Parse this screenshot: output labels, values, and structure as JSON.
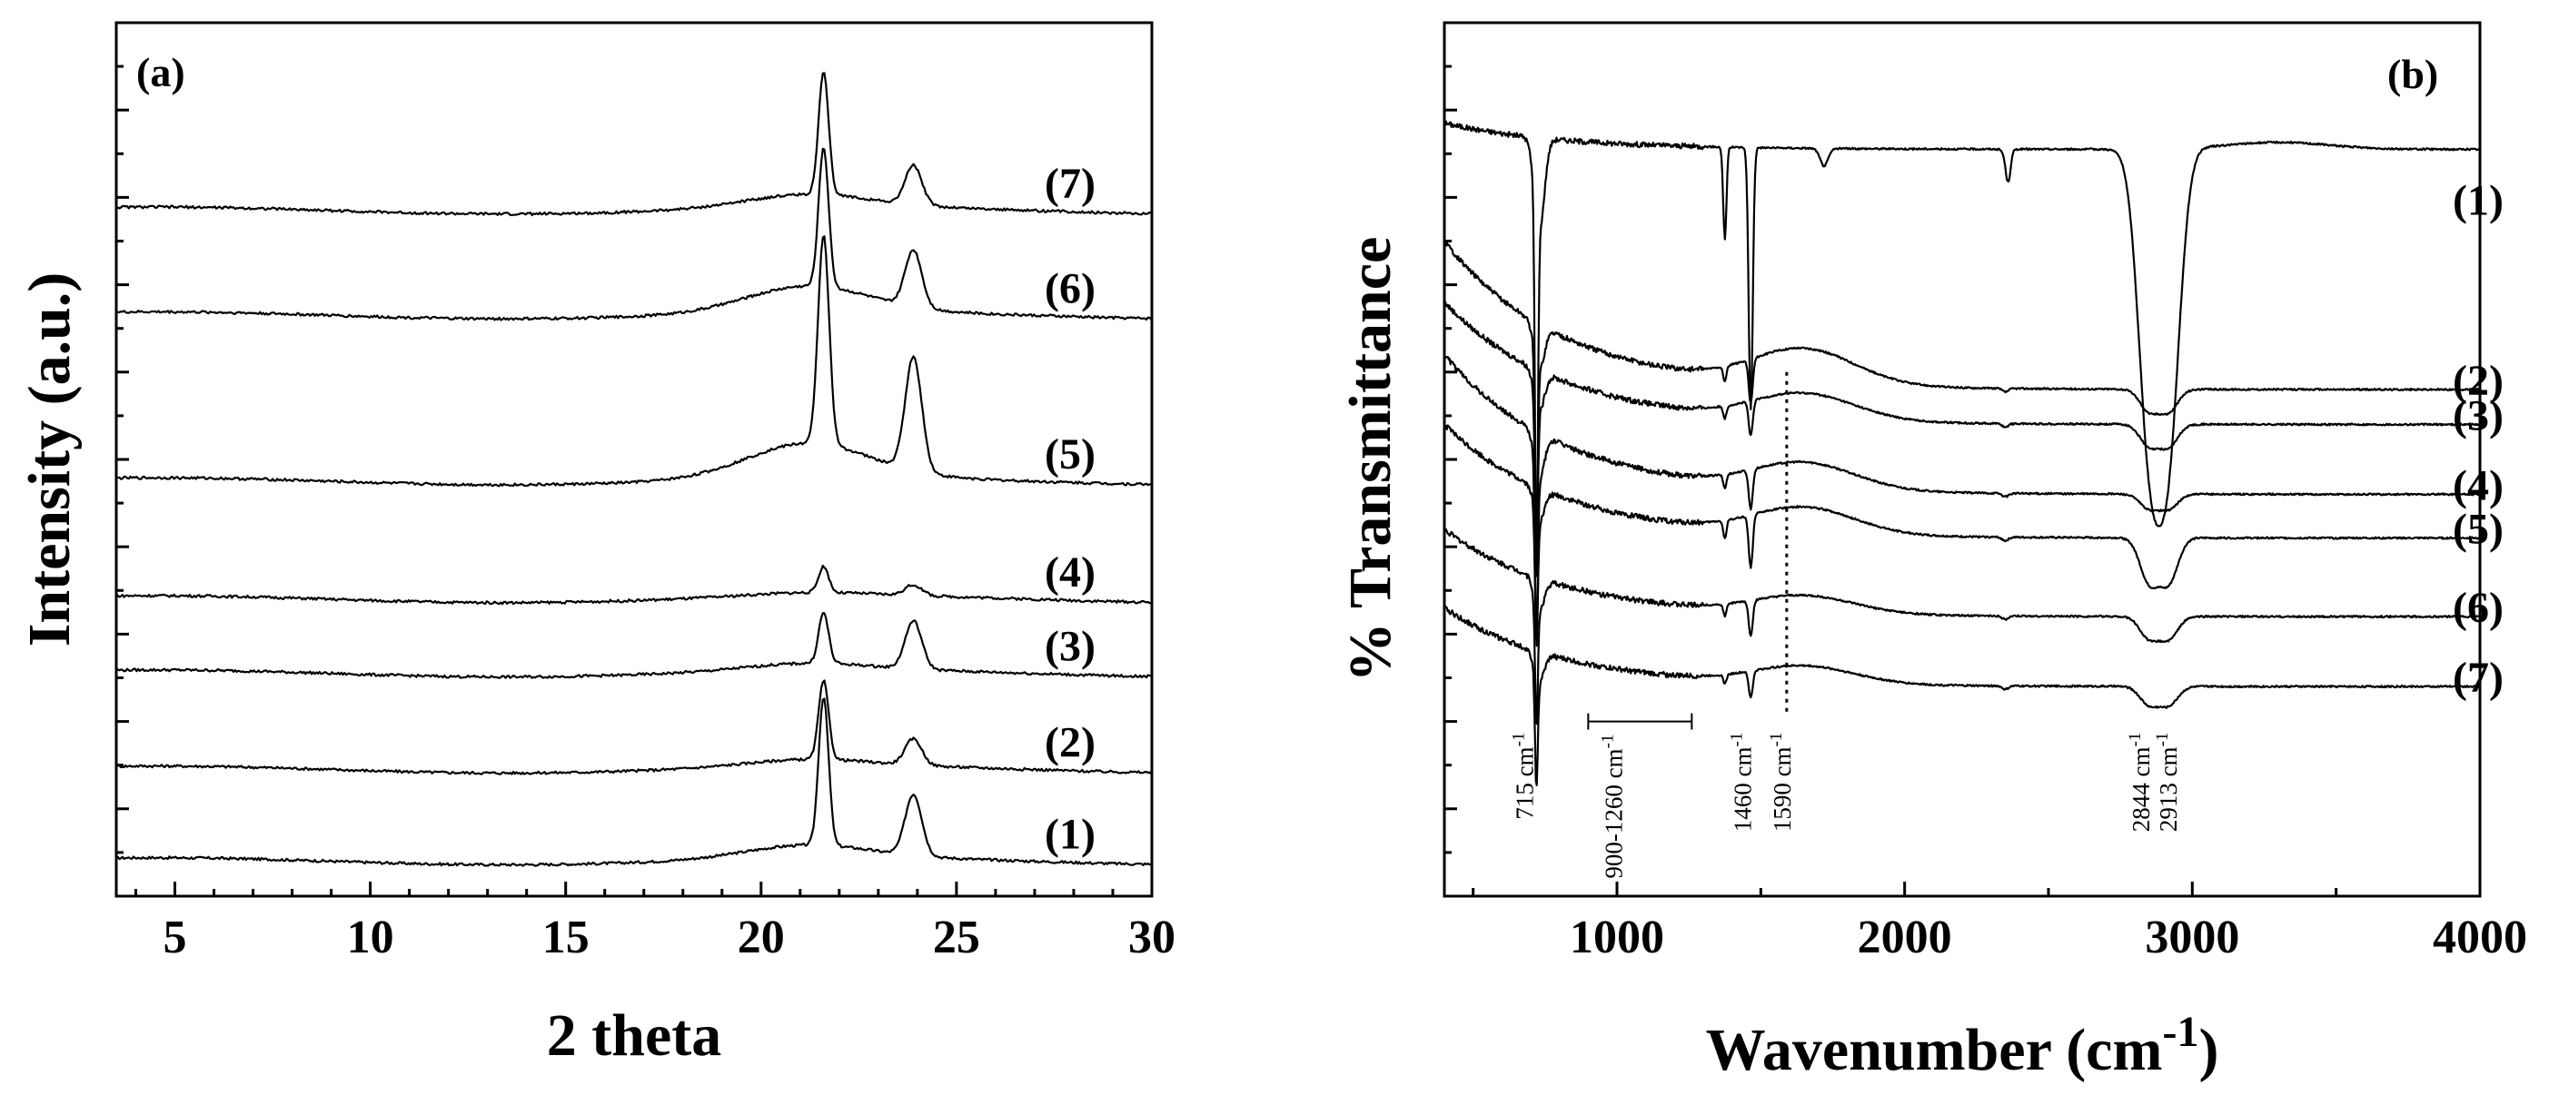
{
  "chart_data": [
    {
      "type": "line",
      "panel_label": "(a)",
      "title": "",
      "xlabel": "2 theta",
      "ylabel": "Intensity (a.u.)",
      "xlim": [
        3.5,
        30
      ],
      "xticks": [
        "5",
        "10",
        "15",
        "20",
        "25",
        "30"
      ],
      "grid": false,
      "legend": "none",
      "series": [
        {
          "name": "(1)",
          "label": "(1)",
          "baseline": 0.04,
          "peaks": [
            {
              "x": 21.6,
              "h": 0.17,
              "w": 0.18
            },
            {
              "x": 23.9,
              "h": 0.07,
              "w": 0.3
            }
          ],
          "hump": 0.015
        },
        {
          "name": "(2)",
          "label": "(2)",
          "baseline": 0.145,
          "peaks": [
            {
              "x": 21.6,
              "h": 0.09,
              "w": 0.18
            },
            {
              "x": 23.9,
              "h": 0.03,
              "w": 0.3
            }
          ],
          "hump": 0.008
        },
        {
          "name": "(3)",
          "label": "(3)",
          "baseline": 0.255,
          "peaks": [
            {
              "x": 21.6,
              "h": 0.058,
              "w": 0.18
            },
            {
              "x": 23.9,
              "h": 0.055,
              "w": 0.3
            }
          ],
          "hump": 0.008
        },
        {
          "name": "(4)",
          "label": "(4)",
          "baseline": 0.34,
          "peaks": [
            {
              "x": 21.6,
              "h": 0.03,
              "w": 0.18
            },
            {
              "x": 23.9,
              "h": 0.012,
              "w": 0.3
            }
          ],
          "hump": 0.004
        },
        {
          "name": "(5)",
          "label": "(5)",
          "baseline": 0.475,
          "peaks": [
            {
              "x": 21.6,
              "h": 0.24,
              "w": 0.2
            },
            {
              "x": 23.9,
              "h": 0.13,
              "w": 0.3
            }
          ],
          "hump": 0.04
        },
        {
          "name": "(6)",
          "label": "(6)",
          "baseline": 0.665,
          "peaks": [
            {
              "x": 21.6,
              "h": 0.16,
              "w": 0.18
            },
            {
              "x": 23.9,
              "h": 0.065,
              "w": 0.3
            }
          ],
          "hump": 0.03
        },
        {
          "name": "(7)",
          "label": "(7)",
          "baseline": 0.785,
          "peaks": [
            {
              "x": 21.6,
              "h": 0.14,
              "w": 0.18
            },
            {
              "x": 23.9,
              "h": 0.045,
              "w": 0.3
            }
          ],
          "hump": 0.015
        }
      ]
    },
    {
      "type": "line",
      "panel_label": "(b)",
      "title": "",
      "xlabel": "Wavenumber (cm",
      "xlabel_sup": "-1",
      "xlabel_close": ")",
      "ylabel": "% Transmittance",
      "xlim": [
        400,
        4000
      ],
      "xticks": [
        "1000",
        "2000",
        "3000",
        "4000"
      ],
      "grid": false,
      "legend": "none",
      "annotations": [
        {
          "wavenumber": 715,
          "label": "715 cm",
          "sup": "-1"
        },
        {
          "wavenumber_range": [
            900,
            1260
          ],
          "label": "900-1260 cm",
          "sup": "-1"
        },
        {
          "wavenumber": 1460,
          "label": "1460 cm",
          "sup": "-1"
        },
        {
          "wavenumber": 1590,
          "label": "1590 cm",
          "sup": "-1"
        },
        {
          "wavenumber": 2844,
          "label": "2844 cm",
          "sup": "-1"
        },
        {
          "wavenumber": 2913,
          "label": "2913 cm",
          "sup": "-1"
        }
      ],
      "series": [
        {
          "name": "(1)",
          "label": "(1)",
          "end": 0.855,
          "start": 0.885,
          "d715": 0.42,
          "d1460": 0.3,
          "d2900": 0.38,
          "dip_w": 55,
          "rise": 0.0
        },
        {
          "name": "(2)",
          "label": "(2)",
          "end": 0.58,
          "start": 0.75,
          "d715": 0.2,
          "d1460": 0.05,
          "d2900": 0.03,
          "dip_w": 45,
          "rise": 0.04
        },
        {
          "name": "(3)",
          "label": "(3)",
          "end": 0.54,
          "start": 0.68,
          "d715": 0.18,
          "d1460": 0.04,
          "d2900": 0.03,
          "dip_w": 45,
          "rise": 0.03
        },
        {
          "name": "(4)",
          "label": "(4)",
          "end": 0.46,
          "start": 0.62,
          "d715": 0.2,
          "d1460": 0.045,
          "d2900": 0.02,
          "dip_w": 45,
          "rise": 0.03
        },
        {
          "name": "(5)",
          "label": "(5)",
          "end": 0.41,
          "start": 0.54,
          "d715": 0.15,
          "d1460": 0.06,
          "d2900": 0.06,
          "dip_w": 45,
          "rise": 0.03
        },
        {
          "name": "(6)",
          "label": "(6)",
          "end": 0.32,
          "start": 0.42,
          "d715": 0.14,
          "d1460": 0.04,
          "d2900": 0.03,
          "dip_w": 45,
          "rise": 0.02
        },
        {
          "name": "(7)",
          "label": "(7)",
          "end": 0.24,
          "start": 0.33,
          "d715": 0.13,
          "d1460": 0.03,
          "d2900": 0.025,
          "dip_w": 45,
          "rise": 0.02
        }
      ]
    }
  ]
}
